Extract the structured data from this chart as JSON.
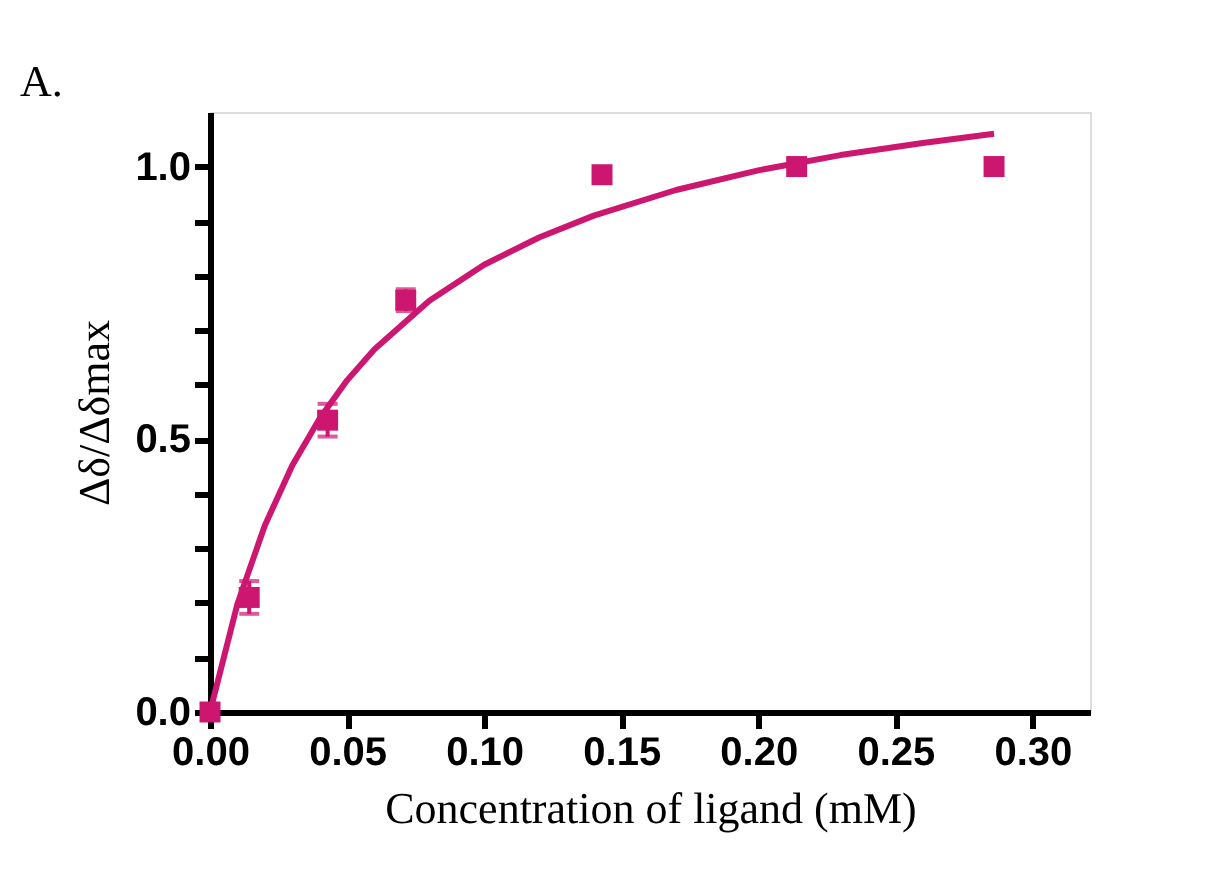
{
  "chart_data": {
    "type": "scatter",
    "xlabel": "Concentration of ligand (mM)",
    "ylabel": "Δδ/Δδmax",
    "annotations": [
      "A."
    ],
    "xlim": [
      0,
      0.321
    ],
    "ylim": [
      0,
      1.1
    ],
    "xticks": [
      {
        "value": 0,
        "label": "0.00"
      },
      {
        "value": 0.05,
        "label": "0.05"
      },
      {
        "value": 0.1,
        "label": "0.10"
      },
      {
        "value": 0.15,
        "label": "0.15"
      },
      {
        "value": 0.2,
        "label": "0.20"
      },
      {
        "value": 0.25,
        "label": "0.25"
      },
      {
        "value": 0.3,
        "label": "0.30"
      }
    ],
    "yticks": [
      {
        "value": 0,
        "label": "0.0"
      },
      {
        "value": 0.1,
        "label": null
      },
      {
        "value": 0.2,
        "label": null
      },
      {
        "value": 0.3,
        "label": null
      },
      {
        "value": 0.4,
        "label": null
      },
      {
        "value": 0.5,
        "label": "0.5"
      },
      {
        "value": 0.6,
        "label": null
      },
      {
        "value": 0.7,
        "label": null
      },
      {
        "value": 0.8,
        "label": null
      },
      {
        "value": 0.9,
        "label": null
      },
      {
        "value": 1.0,
        "label": "1.0"
      }
    ],
    "series": [
      {
        "type": "line",
        "color": "#cc1670",
        "x": [
          0,
          0.01,
          0.02,
          0.03,
          0.04,
          0.05,
          0.06,
          0.08,
          0.1,
          0.12,
          0.14,
          0.17,
          0.2,
          0.23,
          0.26,
          0.286
        ],
        "values": [
          0,
          0.198,
          0.342,
          0.452,
          0.538,
          0.608,
          0.665,
          0.754,
          0.82,
          0.87,
          0.91,
          0.957,
          0.993,
          1.021,
          1.043,
          1.06
        ]
      },
      {
        "marker": "square",
        "color": "#cc1670",
        "x": [
          0,
          0.0143,
          0.0429,
          0.0714,
          0.143,
          0.214,
          0.286
        ],
        "values": [
          0,
          0.21,
          0.535,
          0.755,
          0.985,
          1.0,
          1.0
        ],
        "errors": [
          null,
          0.03,
          0.03,
          0.02,
          null,
          null,
          null
        ]
      }
    ]
  }
}
